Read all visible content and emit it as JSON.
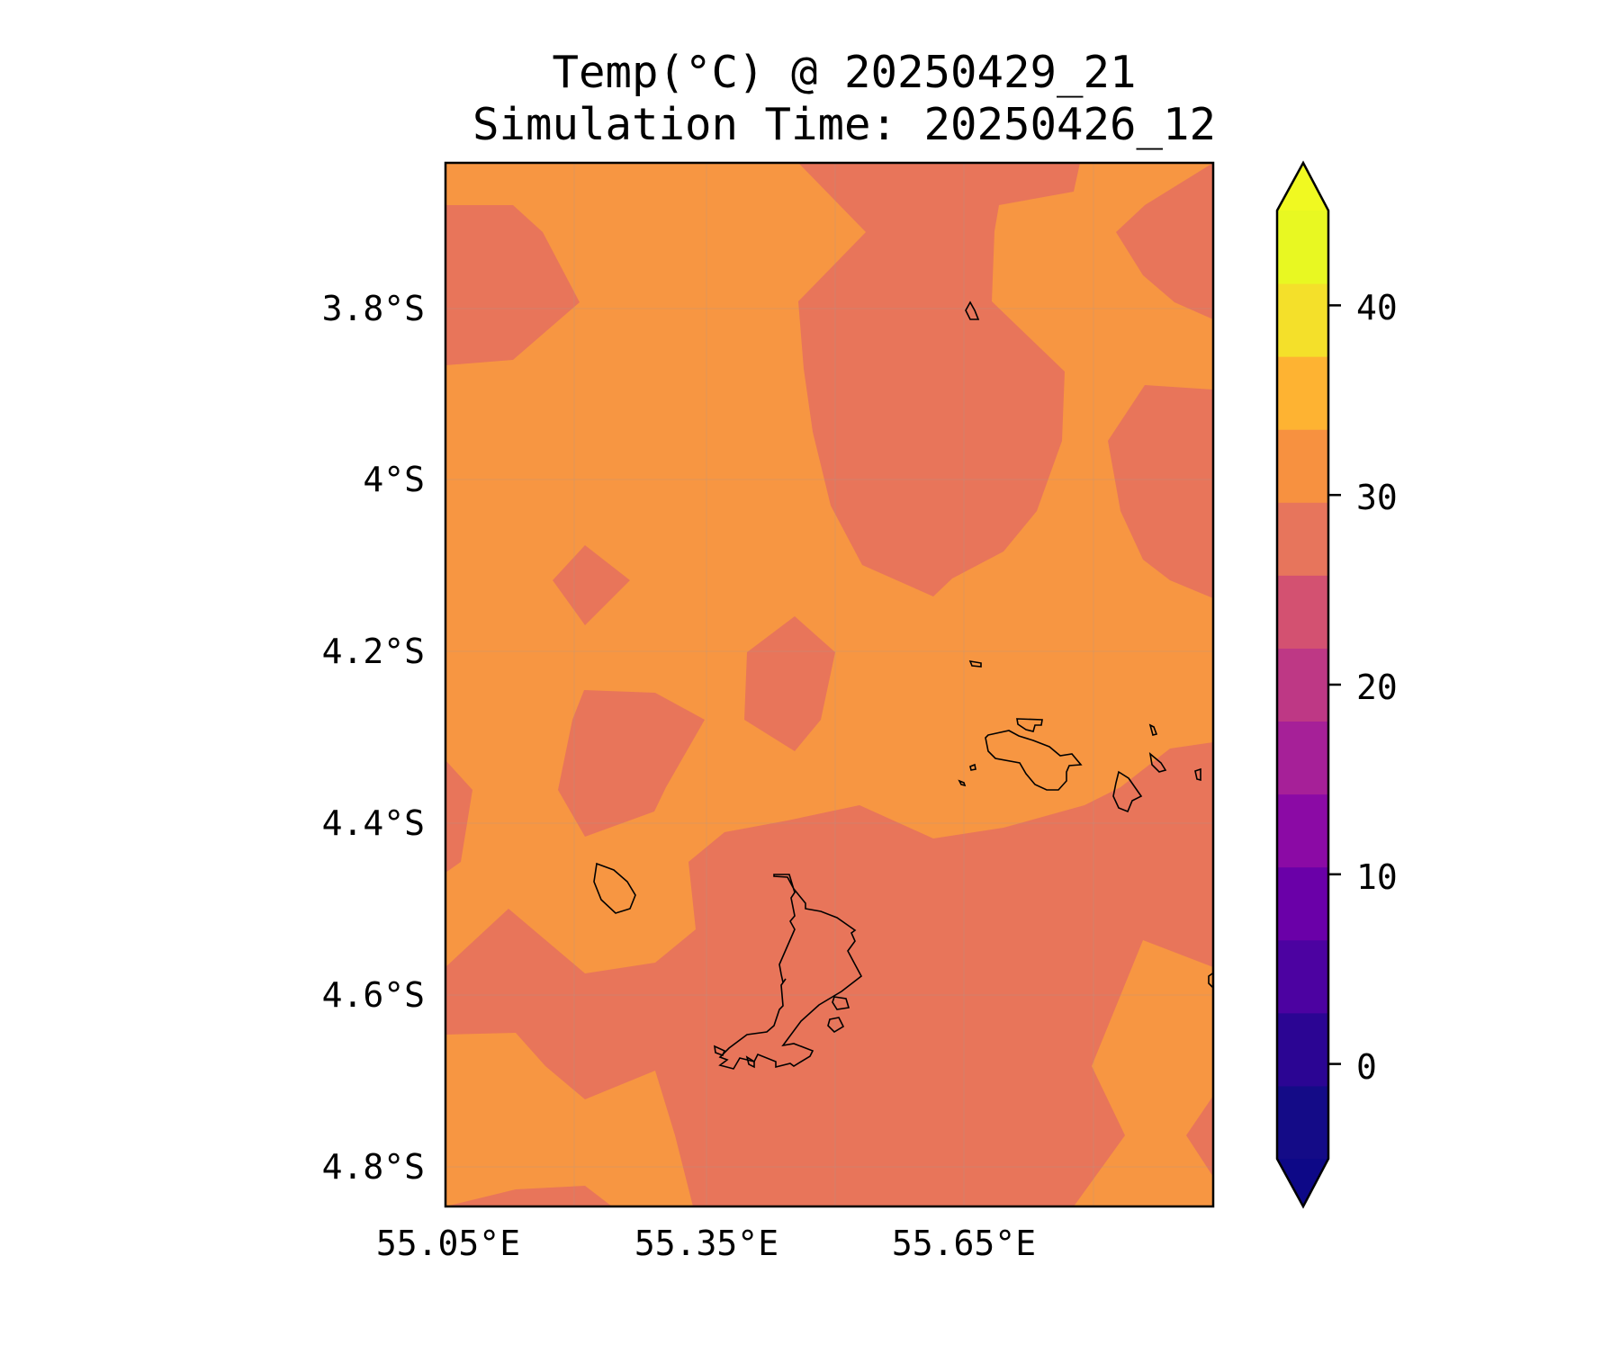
{
  "map": {
    "title": "Temp(°C) @ 20250429_21",
    "subtitle": "Simulation Time: 20250426_12",
    "lat_ticks": [
      "3.8°S",
      "4°S",
      "4.2°S",
      "4.4°S",
      "4.6°S",
      "4.8°S"
    ],
    "lon_ticks": [
      "55.05°E",
      "55.35°E",
      "55.65°E"
    ],
    "colorbar": {
      "ticks": [
        "0",
        "10",
        "20",
        "30",
        "40"
      ],
      "min": -5,
      "max": 45,
      "step": 5,
      "extend": "both",
      "colormap": "plasma",
      "colors": [
        "#140b87",
        "#2b0593",
        "#4c02a1",
        "#6a00a8",
        "#8b0aa5",
        "#a62098",
        "#be3885",
        "#d35171",
        "#e7755c",
        "#f79140",
        "#feb332",
        "#f4e02a",
        "#e8f822"
      ],
      "under_color": "#0d0887",
      "over_color": "#f0f921"
    },
    "fill_colors": {
      "25_30": "#e8755a",
      "30_35": "#f79642"
    },
    "grid": true,
    "coastline_color": "#000000"
  }
}
